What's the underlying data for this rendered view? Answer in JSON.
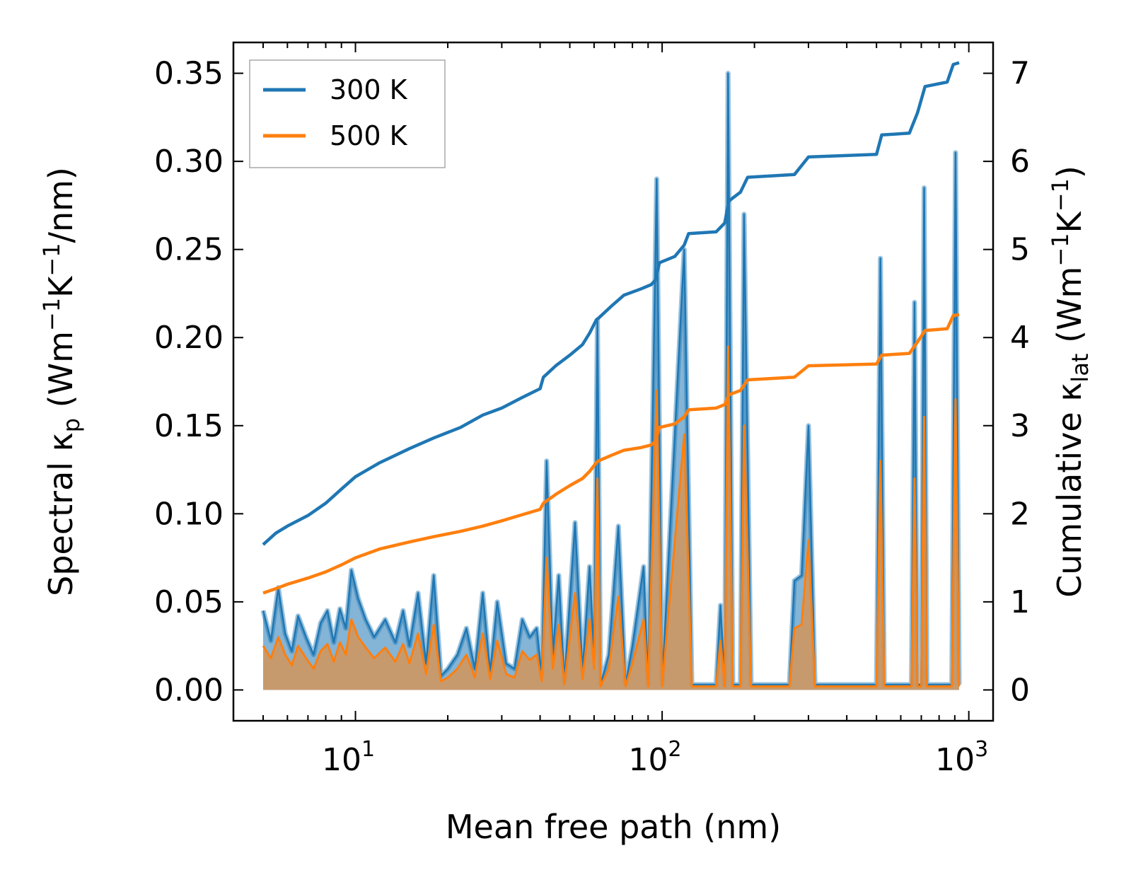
{
  "chart_data": {
    "type": "line",
    "xlabel": "Mean free path (nm)",
    "ylabel_left": {
      "prefix": "Spectral κ",
      "sub": "p",
      "units_open": " (Wm",
      "sup1": "−1",
      "k": "K",
      "sup2": "−1",
      "units_close": "/nm)"
    },
    "ylabel_right": {
      "prefix": "Cumulative κ",
      "sub": "lat",
      "units_open": " (Wm",
      "sup1": "−1",
      "k": "K",
      "sup2": "−1",
      "units_close": ")"
    },
    "xscale": "log",
    "xlim": [
      4,
      1200
    ],
    "ylim_left": [
      -0.0175,
      0.3675
    ],
    "ylim_right": [
      -0.35,
      7.35
    ],
    "x_ticks": [
      {
        "value": 10,
        "base": "10",
        "exp": "1"
      },
      {
        "value": 100,
        "base": "10",
        "exp": "2"
      },
      {
        "value": 1000,
        "base": "10",
        "exp": "3"
      }
    ],
    "y_left_ticks": [
      "0.00",
      "0.05",
      "0.10",
      "0.15",
      "0.20",
      "0.25",
      "0.30",
      "0.35"
    ],
    "y_right_ticks": [
      "0",
      "1",
      "2",
      "3",
      "4",
      "5",
      "6",
      "7"
    ],
    "legend": {
      "position": "upper-left",
      "entries": [
        "300 K",
        "500 K"
      ]
    },
    "colors": {
      "300K": "#1f77b4",
      "500K": "#ff7f0e",
      "fill300": "#1f77b4",
      "fill500": "#d2955a"
    },
    "series": [
      {
        "name": "300 K",
        "cumulative": [
          [
            5.0,
            1.65
          ],
          [
            5.5,
            1.78
          ],
          [
            6.0,
            1.86
          ],
          [
            7.0,
            1.98
          ],
          [
            8.0,
            2.12
          ],
          [
            9.0,
            2.28
          ],
          [
            10.0,
            2.42
          ],
          [
            12.0,
            2.58
          ],
          [
            15.0,
            2.74
          ],
          [
            18.0,
            2.86
          ],
          [
            22.0,
            2.98
          ],
          [
            26.0,
            3.12
          ],
          [
            30.0,
            3.2
          ],
          [
            35.0,
            3.32
          ],
          [
            40.0,
            3.42
          ],
          [
            41.0,
            3.55
          ],
          [
            45.0,
            3.68
          ],
          [
            50.0,
            3.8
          ],
          [
            55.0,
            3.92
          ],
          [
            58.0,
            4.05
          ],
          [
            61.0,
            4.2
          ],
          [
            62.0,
            4.22
          ],
          [
            68.0,
            4.35
          ],
          [
            75.0,
            4.48
          ],
          [
            85.0,
            4.55
          ],
          [
            92.0,
            4.6
          ],
          [
            95.0,
            4.65
          ],
          [
            98.0,
            4.85
          ],
          [
            110.0,
            4.92
          ],
          [
            118.0,
            5.05
          ],
          [
            122.0,
            5.18
          ],
          [
            150.0,
            5.2
          ],
          [
            160.0,
            5.3
          ],
          [
            165.0,
            5.55
          ],
          [
            180.0,
            5.65
          ],
          [
            190.0,
            5.82
          ],
          [
            270.0,
            5.85
          ],
          [
            300.0,
            6.05
          ],
          [
            500.0,
            6.08
          ],
          [
            520.0,
            6.3
          ],
          [
            640.0,
            6.32
          ],
          [
            680.0,
            6.55
          ],
          [
            720.0,
            6.85
          ],
          [
            850.0,
            6.9
          ],
          [
            890.0,
            7.1
          ],
          [
            930.0,
            7.12
          ]
        ],
        "spectral": [
          [
            5.0,
            0.045
          ],
          [
            5.3,
            0.028
          ],
          [
            5.6,
            0.058
          ],
          [
            5.9,
            0.032
          ],
          [
            6.2,
            0.022
          ],
          [
            6.5,
            0.042
          ],
          [
            6.9,
            0.03
          ],
          [
            7.3,
            0.02
          ],
          [
            7.7,
            0.038
          ],
          [
            8.1,
            0.045
          ],
          [
            8.5,
            0.027
          ],
          [
            8.9,
            0.046
          ],
          [
            9.3,
            0.035
          ],
          [
            9.7,
            0.068
          ],
          [
            10.2,
            0.052
          ],
          [
            10.8,
            0.04
          ],
          [
            11.5,
            0.03
          ],
          [
            12.5,
            0.04
          ],
          [
            13.5,
            0.027
          ],
          [
            14.3,
            0.045
          ],
          [
            15.0,
            0.025
          ],
          [
            16.0,
            0.055
          ],
          [
            17.0,
            0.015
          ],
          [
            18.0,
            0.065
          ],
          [
            19.0,
            0.008
          ],
          [
            20.0,
            0.012
          ],
          [
            21.5,
            0.02
          ],
          [
            23.0,
            0.035
          ],
          [
            24.5,
            0.012
          ],
          [
            26.0,
            0.055
          ],
          [
            27.5,
            0.01
          ],
          [
            29.0,
            0.05
          ],
          [
            31.0,
            0.015
          ],
          [
            33.0,
            0.012
          ],
          [
            35.0,
            0.04
          ],
          [
            37.0,
            0.03
          ],
          [
            39.0,
            0.035
          ],
          [
            40.5,
            0.008
          ],
          [
            42.0,
            0.13
          ],
          [
            44.0,
            0.02
          ],
          [
            46.0,
            0.065
          ],
          [
            48.0,
            0.005
          ],
          [
            52.0,
            0.095
          ],
          [
            55.0,
            0.01
          ],
          [
            58.0,
            0.07
          ],
          [
            60.0,
            0.02
          ],
          [
            61.5,
            0.21
          ],
          [
            63.0,
            0.003
          ],
          [
            67.0,
            0.02
          ],
          [
            72.0,
            0.093
          ],
          [
            76.0,
            0.003
          ],
          [
            80.0,
            0.025
          ],
          [
            87.0,
            0.07
          ],
          [
            90.0,
            0.003
          ],
          [
            96.0,
            0.29
          ],
          [
            100.0,
            0.003
          ],
          [
            118.0,
            0.25
          ],
          [
            125.0,
            0.003
          ],
          [
            150.0,
            0.003
          ],
          [
            155.0,
            0.048
          ],
          [
            160.0,
            0.003
          ],
          [
            164.0,
            0.35
          ],
          [
            170.0,
            0.003
          ],
          [
            180.0,
            0.003
          ],
          [
            185.0,
            0.27
          ],
          [
            195.0,
            0.003
          ],
          [
            260.0,
            0.003
          ],
          [
            270.0,
            0.062
          ],
          [
            285.0,
            0.065
          ],
          [
            300.0,
            0.15
          ],
          [
            315.0,
            0.003
          ],
          [
            500.0,
            0.003
          ],
          [
            515.0,
            0.245
          ],
          [
            530.0,
            0.003
          ],
          [
            650.0,
            0.003
          ],
          [
            665.0,
            0.22
          ],
          [
            680.0,
            0.003
          ],
          [
            700.0,
            0.003
          ],
          [
            715.0,
            0.285
          ],
          [
            730.0,
            0.003
          ],
          [
            880.0,
            0.003
          ],
          [
            905.0,
            0.305
          ],
          [
            930.0,
            0.003
          ]
        ]
      },
      {
        "name": "500 K",
        "cumulative": [
          [
            5.0,
            1.1
          ],
          [
            5.5,
            1.15
          ],
          [
            6.0,
            1.2
          ],
          [
            7.0,
            1.27
          ],
          [
            8.0,
            1.34
          ],
          [
            9.0,
            1.42
          ],
          [
            10.0,
            1.5
          ],
          [
            12.0,
            1.6
          ],
          [
            15.0,
            1.68
          ],
          [
            18.0,
            1.74
          ],
          [
            22.0,
            1.8
          ],
          [
            26.0,
            1.86
          ],
          [
            30.0,
            1.92
          ],
          [
            35.0,
            1.99
          ],
          [
            40.0,
            2.05
          ],
          [
            41.0,
            2.12
          ],
          [
            45.0,
            2.22
          ],
          [
            50.0,
            2.32
          ],
          [
            55.0,
            2.4
          ],
          [
            58.0,
            2.48
          ],
          [
            61.0,
            2.58
          ],
          [
            62.0,
            2.6
          ],
          [
            68.0,
            2.66
          ],
          [
            75.0,
            2.72
          ],
          [
            85.0,
            2.75
          ],
          [
            92.0,
            2.78
          ],
          [
            95.0,
            2.82
          ],
          [
            98.0,
            2.98
          ],
          [
            110.0,
            3.02
          ],
          [
            118.0,
            3.1
          ],
          [
            122.0,
            3.18
          ],
          [
            150.0,
            3.2
          ],
          [
            160.0,
            3.24
          ],
          [
            165.0,
            3.35
          ],
          [
            180.0,
            3.4
          ],
          [
            190.0,
            3.52
          ],
          [
            270.0,
            3.55
          ],
          [
            300.0,
            3.68
          ],
          [
            500.0,
            3.7
          ],
          [
            520.0,
            3.8
          ],
          [
            640.0,
            3.82
          ],
          [
            680.0,
            3.95
          ],
          [
            720.0,
            4.08
          ],
          [
            850.0,
            4.1
          ],
          [
            890.0,
            4.25
          ],
          [
            930.0,
            4.26
          ]
        ],
        "spectral": [
          [
            5.0,
            0.025
          ],
          [
            5.3,
            0.018
          ],
          [
            5.6,
            0.03
          ],
          [
            5.9,
            0.02
          ],
          [
            6.2,
            0.014
          ],
          [
            6.5,
            0.025
          ],
          [
            6.9,
            0.018
          ],
          [
            7.3,
            0.012
          ],
          [
            7.7,
            0.022
          ],
          [
            8.1,
            0.026
          ],
          [
            8.5,
            0.016
          ],
          [
            8.9,
            0.027
          ],
          [
            9.3,
            0.02
          ],
          [
            9.7,
            0.04
          ],
          [
            10.2,
            0.03
          ],
          [
            10.8,
            0.024
          ],
          [
            11.5,
            0.018
          ],
          [
            12.5,
            0.024
          ],
          [
            13.5,
            0.016
          ],
          [
            14.3,
            0.026
          ],
          [
            15.0,
            0.015
          ],
          [
            16.0,
            0.032
          ],
          [
            17.0,
            0.009
          ],
          [
            18.0,
            0.037
          ],
          [
            19.0,
            0.005
          ],
          [
            20.0,
            0.007
          ],
          [
            21.5,
            0.012
          ],
          [
            23.0,
            0.02
          ],
          [
            24.5,
            0.007
          ],
          [
            26.0,
            0.032
          ],
          [
            27.5,
            0.006
          ],
          [
            29.0,
            0.028
          ],
          [
            31.0,
            0.009
          ],
          [
            33.0,
            0.007
          ],
          [
            35.0,
            0.022
          ],
          [
            37.0,
            0.017
          ],
          [
            39.0,
            0.02
          ],
          [
            40.5,
            0.005
          ],
          [
            42.0,
            0.075
          ],
          [
            44.0,
            0.012
          ],
          [
            46.0,
            0.037
          ],
          [
            48.0,
            0.003
          ],
          [
            52.0,
            0.055
          ],
          [
            55.0,
            0.006
          ],
          [
            58.0,
            0.04
          ],
          [
            60.0,
            0.012
          ],
          [
            61.5,
            0.12
          ],
          [
            63.0,
            0.002
          ],
          [
            67.0,
            0.012
          ],
          [
            72.0,
            0.053
          ],
          [
            76.0,
            0.002
          ],
          [
            80.0,
            0.015
          ],
          [
            87.0,
            0.04
          ],
          [
            90.0,
            0.002
          ],
          [
            96.0,
            0.17
          ],
          [
            100.0,
            0.002
          ],
          [
            118.0,
            0.145
          ],
          [
            125.0,
            0.002
          ],
          [
            150.0,
            0.002
          ],
          [
            155.0,
            0.028
          ],
          [
            160.0,
            0.002
          ],
          [
            164.0,
            0.195
          ],
          [
            170.0,
            0.002
          ],
          [
            180.0,
            0.002
          ],
          [
            185.0,
            0.15
          ],
          [
            195.0,
            0.002
          ],
          [
            260.0,
            0.002
          ],
          [
            270.0,
            0.035
          ],
          [
            285.0,
            0.037
          ],
          [
            300.0,
            0.085
          ],
          [
            315.0,
            0.002
          ],
          [
            500.0,
            0.002
          ],
          [
            515.0,
            0.13
          ],
          [
            530.0,
            0.002
          ],
          [
            650.0,
            0.002
          ],
          [
            665.0,
            0.12
          ],
          [
            680.0,
            0.002
          ],
          [
            700.0,
            0.002
          ],
          [
            715.0,
            0.155
          ],
          [
            730.0,
            0.002
          ],
          [
            880.0,
            0.002
          ],
          [
            905.0,
            0.165
          ],
          [
            930.0,
            0.002
          ]
        ]
      }
    ]
  }
}
